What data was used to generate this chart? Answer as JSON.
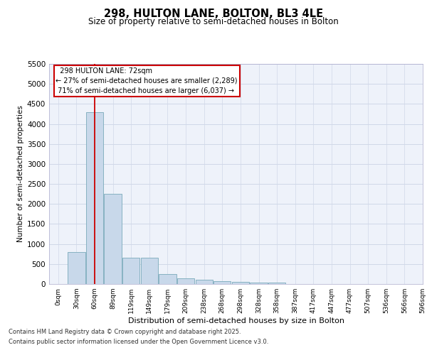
{
  "title": "298, HULTON LANE, BOLTON, BL3 4LE",
  "subtitle": "Size of property relative to semi-detached houses in Bolton",
  "xlabel": "Distribution of semi-detached houses by size in Bolton",
  "ylabel": "Number of semi-detached properties",
  "property_label": "298 HULTON LANE: 72sqm",
  "pct_smaller": "27% of semi-detached houses are smaller (2,289)",
  "pct_larger": "71% of semi-detached houses are larger (6,037)",
  "property_size_sqm": 72,
  "bar_values": [
    0,
    800,
    4300,
    2250,
    650,
    650,
    250,
    150,
    100,
    70,
    50,
    40,
    30,
    5,
    0,
    0,
    0,
    0,
    0,
    0
  ],
  "bin_labels": [
    "0sqm",
    "30sqm",
    "60sqm",
    "89sqm",
    "119sqm",
    "149sqm",
    "179sqm",
    "209sqm",
    "238sqm",
    "268sqm",
    "298sqm",
    "328sqm",
    "358sqm",
    "387sqm",
    "417sqm",
    "447sqm",
    "477sqm",
    "507sqm",
    "536sqm",
    "566sqm",
    "596sqm"
  ],
  "bar_color": "#c8d8ea",
  "bar_edge_color": "#7aaabb",
  "vline_color": "#cc0000",
  "grid_color": "#d0d8e8",
  "bg_color": "#eef2fa",
  "ylim": [
    0,
    5500
  ],
  "yticks": [
    0,
    500,
    1000,
    1500,
    2000,
    2500,
    3000,
    3500,
    4000,
    4500,
    5000,
    5500
  ],
  "footer_line1": "Contains HM Land Registry data © Crown copyright and database right 2025.",
  "footer_line2": "Contains public sector information licensed under the Open Government Licence v3.0."
}
